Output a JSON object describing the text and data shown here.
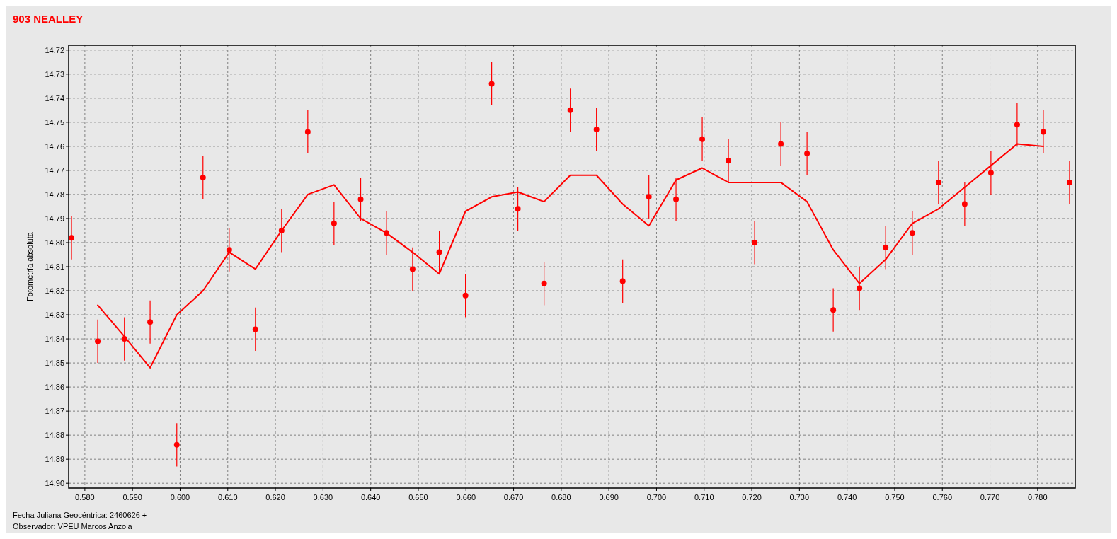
{
  "chart_data": {
    "type": "scatter",
    "title": "903 NEALLEY",
    "xlabel": "Fecha Juliana Geocéntrica: 2460626 +",
    "ylabel": "Fotometría absoluta",
    "annotations": [
      "Observador: VPEU Marcos Anzola"
    ],
    "xlim": [
      0.5766,
      0.7879
    ],
    "ylim": [
      14.902,
      14.718
    ],
    "xticks": [
      {
        "value": 0.58,
        "label": "0.580"
      },
      {
        "value": 0.59,
        "label": "0.590"
      },
      {
        "value": 0.6,
        "label": "0.600"
      },
      {
        "value": 0.61,
        "label": "0.610"
      },
      {
        "value": 0.62,
        "label": "0.620"
      },
      {
        "value": 0.63,
        "label": "0.630"
      },
      {
        "value": 0.64,
        "label": "0.640"
      },
      {
        "value": 0.65,
        "label": "0.650"
      },
      {
        "value": 0.66,
        "label": "0.660"
      },
      {
        "value": 0.67,
        "label": "0.670"
      },
      {
        "value": 0.68,
        "label": "0.680"
      },
      {
        "value": 0.69,
        "label": "0.690"
      },
      {
        "value": 0.7,
        "label": "0.700"
      },
      {
        "value": 0.71,
        "label": "0.710"
      },
      {
        "value": 0.72,
        "label": "0.720"
      },
      {
        "value": 0.73,
        "label": "0.730"
      },
      {
        "value": 0.74,
        "label": "0.740"
      },
      {
        "value": 0.75,
        "label": "0.750"
      },
      {
        "value": 0.76,
        "label": "0.760"
      },
      {
        "value": 0.77,
        "label": "0.770"
      },
      {
        "value": 0.78,
        "label": "0.780"
      }
    ],
    "yticks": [
      14.72,
      14.73,
      14.74,
      14.75,
      14.76,
      14.77,
      14.78,
      14.79,
      {
        "value": 14.8,
        "label": "14.80"
      },
      14.81,
      14.82,
      14.83,
      14.84,
      14.85,
      14.86,
      14.87,
      14.88,
      14.89,
      {
        "value": 14.9,
        "label": "14.90"
      }
    ],
    "grid": true,
    "series": [
      {
        "marker": "circle",
        "color": "#ff0000",
        "x": [
          0.5772,
          0.5827,
          0.5883,
          0.5937,
          0.5993,
          0.6048,
          0.6103,
          0.6158,
          0.6213,
          0.6268,
          0.6323,
          0.6379,
          0.6433,
          0.6488,
          0.6544,
          0.6599,
          0.6654,
          0.6709,
          0.6764,
          0.6819,
          0.6874,
          0.6929,
          0.6984,
          0.7041,
          0.7096,
          0.7151,
          0.7206,
          0.7261,
          0.7316,
          0.7371,
          0.7426,
          0.7481,
          0.7537,
          0.7592,
          0.7647,
          0.7702,
          0.7757,
          0.7812,
          0.7867
        ],
        "values": [
          14.798,
          14.841,
          14.84,
          14.833,
          14.884,
          14.773,
          14.803,
          14.836,
          14.795,
          14.754,
          14.792,
          14.782,
          14.796,
          14.811,
          14.804,
          14.822,
          14.734,
          14.786,
          14.817,
          14.745,
          14.753,
          14.816,
          14.781,
          14.782,
          14.757,
          14.766,
          14.8,
          14.759,
          14.763,
          14.828,
          14.819,
          14.802,
          14.796,
          14.775,
          14.784,
          14.771,
          14.751,
          14.754,
          14.775
        ],
        "errors": [
          0.009,
          0.009,
          0.009,
          0.009,
          0.009,
          0.009,
          0.009,
          0.009,
          0.009,
          0.009,
          0.009,
          0.009,
          0.009,
          0.009,
          0.009,
          0.009,
          0.009,
          0.009,
          0.009,
          0.009,
          0.009,
          0.009,
          0.009,
          0.009,
          0.009,
          0.009,
          0.009,
          0.009,
          0.009,
          0.009,
          0.009,
          0.009,
          0.009,
          0.009,
          0.009,
          0.009,
          0.009,
          0.009,
          0.009
        ]
      },
      {
        "type": "line",
        "color": "#ff0000",
        "x": [
          0.5827,
          0.5883,
          0.5937,
          0.5993,
          0.6048,
          0.6103,
          0.6158,
          0.6213,
          0.6268,
          0.6323,
          0.6379,
          0.6433,
          0.6488,
          0.6544,
          0.6599,
          0.6654,
          0.6709,
          0.6764,
          0.6819,
          0.6874,
          0.6929,
          0.6984,
          0.7041,
          0.7096,
          0.7151,
          0.7206,
          0.7261,
          0.7316,
          0.7371,
          0.7426,
          0.7481,
          0.7537,
          0.7592,
          0.7647,
          0.7702,
          0.7757,
          0.7812
        ],
        "values": [
          14.826,
          14.839,
          14.852,
          14.83,
          14.82,
          14.804,
          14.811,
          14.795,
          14.78,
          14.776,
          14.79,
          14.796,
          14.804,
          14.813,
          14.787,
          14.781,
          14.779,
          14.783,
          14.772,
          14.772,
          14.784,
          14.793,
          14.774,
          14.769,
          14.775,
          14.775,
          14.775,
          14.783,
          14.803,
          14.817,
          14.807,
          14.792,
          14.786,
          14.777,
          14.768,
          14.759,
          14.76
        ]
      }
    ]
  }
}
